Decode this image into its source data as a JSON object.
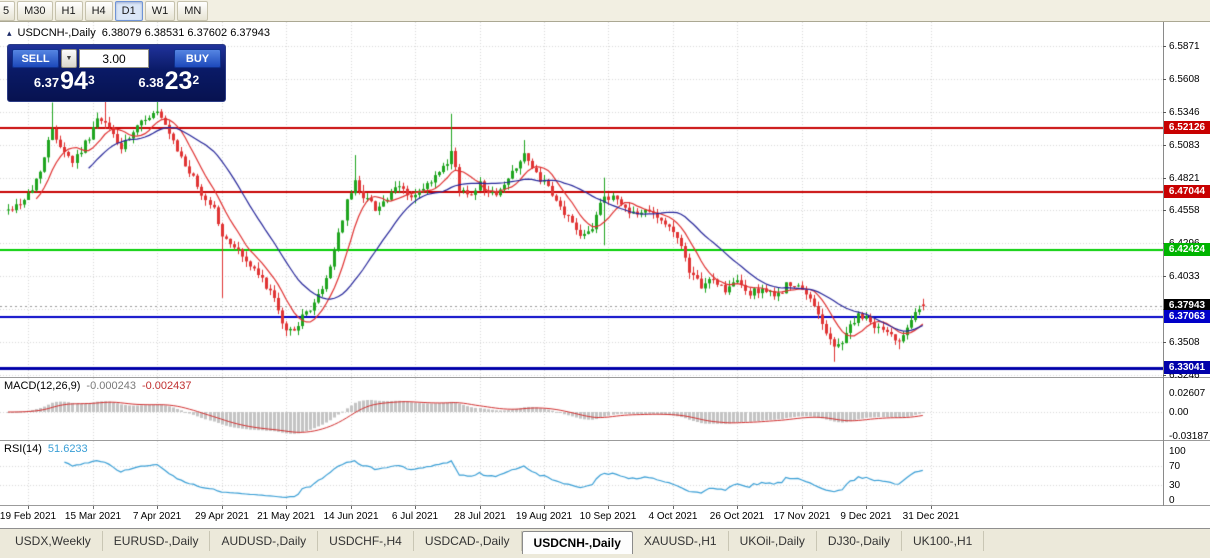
{
  "toolbar": {
    "timeframes": [
      {
        "label": "5",
        "active": false
      },
      {
        "label": "M30",
        "active": false
      },
      {
        "label": "H1",
        "active": false
      },
      {
        "label": "H4",
        "active": false
      },
      {
        "label": "D1",
        "active": true
      },
      {
        "label": "W1",
        "active": false
      },
      {
        "label": "MN",
        "active": false
      }
    ]
  },
  "icons": {
    "one_click_toggle": "▴",
    "volume_dropdown": "▼"
  },
  "chart": {
    "title": {
      "symbol": "USDCNH-,Daily",
      "ohlc": "6.38079 6.38531 6.37602 6.37943"
    },
    "axis_ticks": [
      {
        "label": "6.5871",
        "price": 6.5871
      },
      {
        "label": "6.5608",
        "price": 6.56085
      },
      {
        "label": "6.5346",
        "price": 6.5346
      },
      {
        "label": "6.5083",
        "price": 6.50835
      },
      {
        "label": "6.4821",
        "price": 6.4821
      },
      {
        "label": "6.4558",
        "price": 6.45585
      },
      {
        "label": "6.4296",
        "price": 6.4296
      },
      {
        "label": "6.4033",
        "price": 6.40335
      },
      {
        "label": "6.3771",
        "price": 6.3771
      },
      {
        "label": "6.3508",
        "price": 6.35085
      },
      {
        "label": "6.3246",
        "price": 6.3246
      }
    ],
    "levels": [
      {
        "price": 6.52126,
        "color": "#c80000",
        "width": 2
      },
      {
        "price": 6.47044,
        "color": "#c80000",
        "width": 2
      },
      {
        "price": 6.42424,
        "color": "#00ce00",
        "width": 2
      },
      {
        "price": 6.37063,
        "color": "#0000c8",
        "width": 2
      },
      {
        "price": 6.33041,
        "color": "#0000aa",
        "width": 3
      }
    ],
    "current_price": {
      "label": "6.37943",
      "price": 6.37943,
      "badge_color": "#000000"
    },
    "badges": [
      {
        "label": "6.52126",
        "price": 6.52126,
        "color": "#c80000"
      },
      {
        "label": "6.47044",
        "price": 6.47044,
        "color": "#c80000"
      },
      {
        "label": "6.42424",
        "price": 6.42424,
        "color": "#00b400"
      },
      {
        "label": "6.37943",
        "price": 6.37943,
        "color": "#000000"
      },
      {
        "label": "6.37063",
        "price": 6.37063,
        "color": "#0000c8"
      },
      {
        "label": "6.33041",
        "price": 6.33041,
        "color": "#0000aa"
      }
    ]
  },
  "trade_panel": {
    "sell_label": "SELL",
    "buy_label": "BUY",
    "volume": "3.00",
    "bid_prefix": "6.37",
    "bid_big": "94",
    "bid_sup": "3",
    "ask_prefix": "6.38",
    "ask_big": "23",
    "ask_sup": "2"
  },
  "macd": {
    "label": "MACD(12,26,9)",
    "value1": "-0.000243",
    "value2": "-0.002437",
    "axis": [
      {
        "label": "0.02607",
        "v": 0.02607
      },
      {
        "label": "0.00",
        "v": 0
      },
      {
        "label": "-0.03187",
        "v": -0.03187
      }
    ]
  },
  "rsi": {
    "label": "RSI(14)",
    "value": "51.6233",
    "axis": [
      {
        "label": "100",
        "v": 100
      },
      {
        "label": "70",
        "v": 70
      },
      {
        "label": "30",
        "v": 30
      },
      {
        "label": "0",
        "v": 0
      }
    ],
    "levels": [
      70,
      30
    ]
  },
  "time_axis": {
    "labels": [
      {
        "text": "19 Feb 2021",
        "day": 5
      },
      {
        "text": "15 Mar 2021",
        "day": 21
      },
      {
        "text": "7 Apr 2021",
        "day": 37
      },
      {
        "text": "29 Apr 2021",
        "day": 53
      },
      {
        "text": "21 May 2021",
        "day": 69
      },
      {
        "text": "14 Jun 2021",
        "day": 85
      },
      {
        "text": "6 Jul 2021",
        "day": 101
      },
      {
        "text": "28 Jul 2021",
        "day": 117
      },
      {
        "text": "19 Aug 2021",
        "day": 133
      },
      {
        "text": "10 Sep 2021",
        "day": 149
      },
      {
        "text": "4 Oct 2021",
        "day": 165
      },
      {
        "text": "26 Oct 2021",
        "day": 181
      },
      {
        "text": "17 Nov 2021",
        "day": 197
      },
      {
        "text": "9 Dec 2021",
        "day": 213
      },
      {
        "text": "31 Dec 2021",
        "day": 229
      }
    ]
  },
  "tabs": [
    {
      "label": "USDX,Weekly",
      "active": false
    },
    {
      "label": "EURUSD-,Daily",
      "active": false
    },
    {
      "label": "AUDUSD-,Daily",
      "active": false
    },
    {
      "label": "USDCHF-,H4",
      "active": false
    },
    {
      "label": "USDCAD-,Daily",
      "active": false
    },
    {
      "label": "USDCNH-,Daily",
      "active": true
    },
    {
      "label": "XAUUSD-,H1",
      "active": false
    },
    {
      "label": "UKOil-,Daily",
      "active": false
    },
    {
      "label": "DJ30-,Daily",
      "active": false
    },
    {
      "label": "UK100-,H1",
      "active": false
    }
  ],
  "colors": {
    "grid": "#d8d8d8",
    "candle_up": "#1fa51f",
    "candle_down": "#e03434",
    "ma_fast": "#e03131",
    "ma_slow": "#27279b",
    "macd_hist": "#c4c4c4",
    "macd_signal": "#d23030",
    "rsi_line": "#3a9fd6",
    "current_line": "#999999"
  },
  "chart_data": {
    "type": "candlestick",
    "symbol": "USDCNH",
    "period": "Daily",
    "title": "USDCNH-,Daily",
    "last": {
      "open": 6.38079,
      "high": 6.38531,
      "low": 6.37602,
      "close": 6.37943
    },
    "price_axis": {
      "ticks": [
        6.5871,
        6.5608,
        6.5346,
        6.5083,
        6.4821,
        6.4558,
        6.4296,
        6.4033,
        6.3771,
        6.3508,
        6.3246
      ],
      "step": 0.02625
    },
    "x_axis_dates": [
      "19 Feb 2021",
      "15 Mar 2021",
      "7 Apr 2021",
      "29 Apr 2021",
      "21 May 2021",
      "14 Jun 2021",
      "6 Jul 2021",
      "28 Jul 2021",
      "19 Aug 2021",
      "10 Sep 2021",
      "4 Oct 2021",
      "26 Oct 2021",
      "17 Nov 2021",
      "9 Dec 2021",
      "31 Dec 2021"
    ],
    "horizontal_levels": [
      6.52126,
      6.47044,
      6.42424,
      6.37063,
      6.33041
    ],
    "num_candles": 228,
    "seed": 42,
    "anchors": [
      [
        0,
        6.456
      ],
      [
        3,
        6.462
      ],
      [
        6,
        6.472
      ],
      [
        9,
        6.498
      ],
      [
        11,
        6.522
      ],
      [
        13,
        6.508
      ],
      [
        16,
        6.495
      ],
      [
        19,
        6.509
      ],
      [
        22,
        6.528
      ],
      [
        25,
        6.522
      ],
      [
        28,
        6.505
      ],
      [
        31,
        6.517
      ],
      [
        34,
        6.53
      ],
      [
        37,
        6.534
      ],
      [
        39,
        6.522
      ],
      [
        42,
        6.503
      ],
      [
        45,
        6.487
      ],
      [
        48,
        6.468
      ],
      [
        51,
        6.458
      ],
      [
        53,
        6.434
      ],
      [
        56,
        6.428
      ],
      [
        59,
        6.415
      ],
      [
        62,
        6.404
      ],
      [
        65,
        6.392
      ],
      [
        67,
        6.374
      ],
      [
        69,
        6.359
      ],
      [
        71,
        6.362
      ],
      [
        73,
        6.37
      ],
      [
        75,
        6.378
      ],
      [
        78,
        6.392
      ],
      [
        80,
        6.412
      ],
      [
        82,
        6.438
      ],
      [
        84,
        6.462
      ],
      [
        86,
        6.478
      ],
      [
        88,
        6.468
      ],
      [
        91,
        6.458
      ],
      [
        94,
        6.465
      ],
      [
        97,
        6.475
      ],
      [
        100,
        6.466
      ],
      [
        103,
        6.472
      ],
      [
        106,
        6.482
      ],
      [
        109,
        6.492
      ],
      [
        110,
        6.502
      ],
      [
        112,
        6.474
      ],
      [
        114,
        6.468
      ],
      [
        117,
        6.477
      ],
      [
        120,
        6.468
      ],
      [
        123,
        6.475
      ],
      [
        126,
        6.492
      ],
      [
        128,
        6.501
      ],
      [
        130,
        6.488
      ],
      [
        133,
        6.478
      ],
      [
        136,
        6.462
      ],
      [
        139,
        6.45
      ],
      [
        142,
        6.437
      ],
      [
        145,
        6.443
      ],
      [
        147,
        6.462
      ],
      [
        150,
        6.468
      ],
      [
        153,
        6.458
      ],
      [
        156,
        6.452
      ],
      [
        159,
        6.458
      ],
      [
        162,
        6.448
      ],
      [
        165,
        6.438
      ],
      [
        167,
        6.43
      ],
      [
        169,
        6.404
      ],
      [
        172,
        6.396
      ],
      [
        175,
        6.401
      ],
      [
        178,
        6.392
      ],
      [
        181,
        6.399
      ],
      [
        184,
        6.389
      ],
      [
        187,
        6.394
      ],
      [
        190,
        6.386
      ],
      [
        193,
        6.396
      ],
      [
        196,
        6.394
      ],
      [
        199,
        6.385
      ],
      [
        201,
        6.375
      ],
      [
        203,
        6.358
      ],
      [
        205,
        6.346
      ],
      [
        207,
        6.352
      ],
      [
        209,
        6.364
      ],
      [
        211,
        6.371
      ],
      [
        213,
        6.369
      ],
      [
        215,
        6.364
      ],
      [
        217,
        6.36
      ],
      [
        219,
        6.356
      ],
      [
        221,
        6.352
      ],
      [
        223,
        6.365
      ],
      [
        225,
        6.376
      ],
      [
        227,
        6.3794
      ]
    ],
    "spikes": [
      {
        "day": 11,
        "high": 6.542
      },
      {
        "day": 24,
        "high": 6.547
      },
      {
        "day": 37,
        "high": 6.549
      },
      {
        "day": 53,
        "low": 6.386
      },
      {
        "day": 86,
        "high": 6.5
      },
      {
        "day": 110,
        "high": 6.533
      },
      {
        "day": 128,
        "high": 6.512
      },
      {
        "day": 148,
        "high": 6.482
      },
      {
        "day": 148,
        "low": 6.428
      },
      {
        "day": 205,
        "low": 6.335
      },
      {
        "day": 221,
        "low": 6.345
      }
    ],
    "ma": [
      {
        "period": 8,
        "color": "#e03131"
      },
      {
        "period": 21,
        "color": "#27279b"
      }
    ],
    "macd_params": [
      12,
      26,
      9
    ],
    "macd_current": [
      -0.000243,
      -0.002437
    ],
    "macd_axis_range": [
      -0.03187,
      0.02607
    ],
    "rsi": {
      "period": 14,
      "current": 51.6233,
      "levels": [
        70,
        30
      ]
    }
  }
}
